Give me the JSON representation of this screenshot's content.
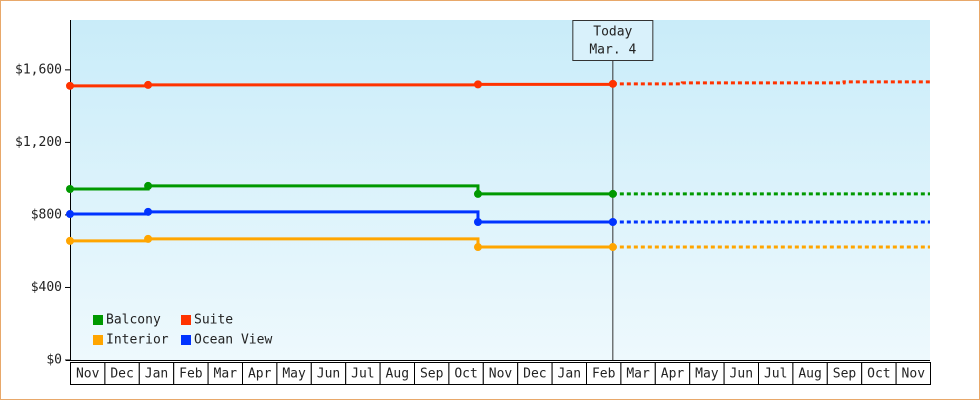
{
  "chart_data": {
    "type": "step-line",
    "categories": [
      "Nov",
      "Dec",
      "Jan",
      "Feb",
      "Mar",
      "Apr",
      "May",
      "Jun",
      "Jul",
      "Aug",
      "Sep",
      "Oct",
      "Nov",
      "Dec",
      "Jan",
      "Feb",
      "Mar",
      "Apr",
      "May",
      "Jun",
      "Jul",
      "Aug",
      "Sep",
      "Oct",
      "Nov"
    ],
    "xlim": [
      0,
      25
    ],
    "ylim": [
      0,
      1875
    ],
    "yticks": [
      {
        "value": 0,
        "label": "$0"
      },
      {
        "value": 400,
        "label": "$400"
      },
      {
        "value": 800,
        "label": "$800"
      },
      {
        "value": 1200,
        "label": "$1,200"
      },
      {
        "value": 1600,
        "label": "$1,600"
      }
    ],
    "series": [
      {
        "name": "Balcony",
        "color": "#009900",
        "x": [
          0,
          2.27,
          11.86,
          15.78
        ],
        "values": [
          943,
          960,
          916,
          916
        ],
        "projection": {
          "x": [
            15.78,
            25
          ],
          "values": [
            916,
            916
          ]
        }
      },
      {
        "name": "Suite",
        "color": "#ff3300",
        "x": [
          0,
          2.27,
          11.86,
          15.78
        ],
        "values": [
          1512,
          1517,
          1520,
          1523
        ],
        "projection": {
          "x": [
            15.78,
            17.8,
            22.5,
            25
          ],
          "values": [
            1523,
            1528,
            1534,
            1534
          ]
        }
      },
      {
        "name": "Interior",
        "color": "#ffa500",
        "x": [
          0,
          2.27,
          11.86,
          15.78
        ],
        "values": [
          657,
          668,
          623,
          623
        ],
        "projection": {
          "x": [
            15.78,
            25
          ],
          "values": [
            623,
            623
          ]
        }
      },
      {
        "name": "Ocean View",
        "color": "#0033ff",
        "x": [
          0,
          2.27,
          11.86,
          15.78
        ],
        "values": [
          805,
          817,
          761,
          761
        ],
        "projection": {
          "x": [
            15.78,
            25
          ],
          "values": [
            761,
            761
          ]
        }
      }
    ],
    "marker": {
      "x": 15.78,
      "label": "Today",
      "date": "Mar. 4"
    },
    "legend": "lower-left"
  }
}
